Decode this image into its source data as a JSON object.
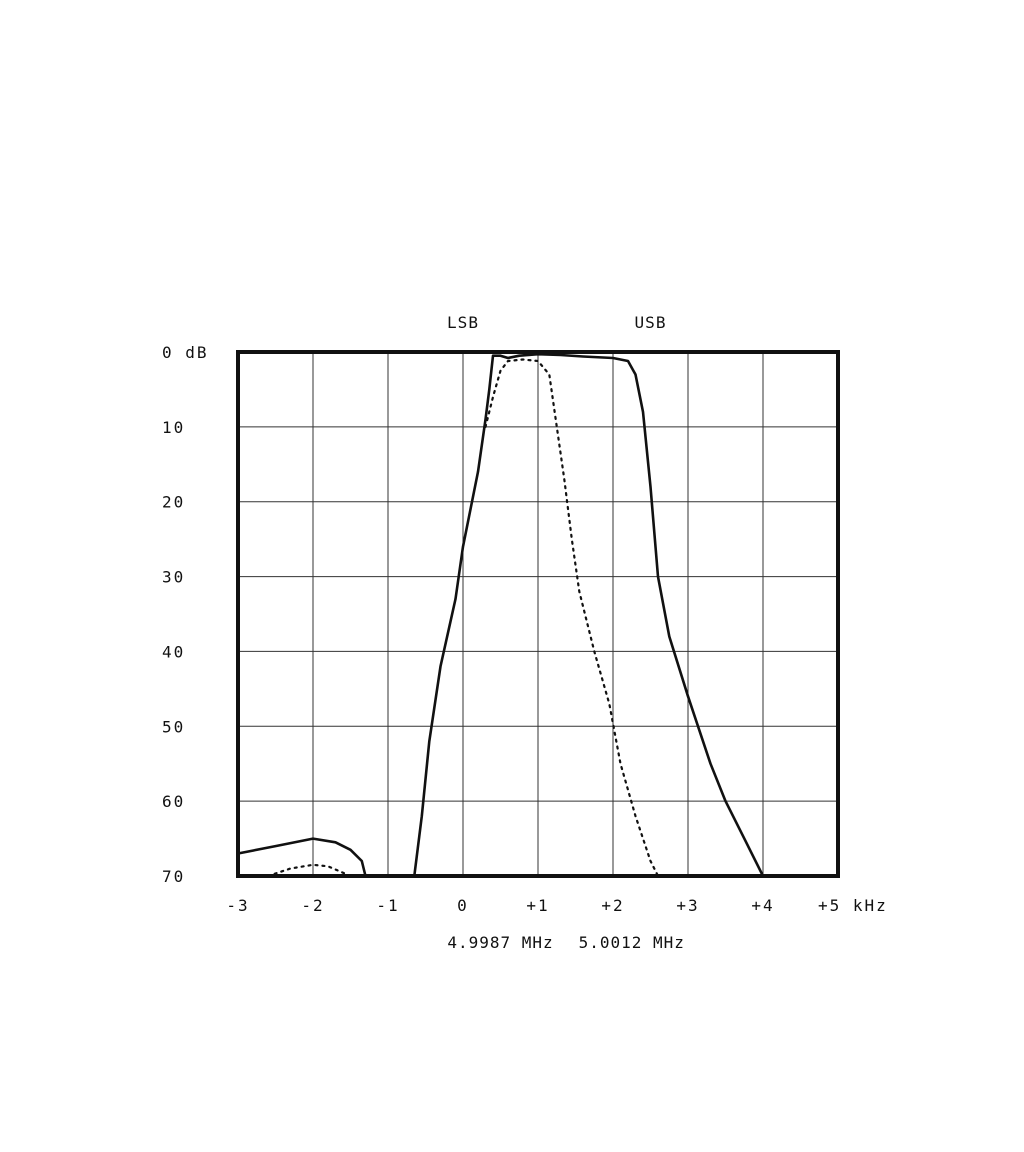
{
  "chart_data": {
    "type": "line",
    "title": "",
    "xlabel": "",
    "ylabel": "",
    "x_unit": "kHz",
    "y_unit": "dB",
    "xlim": [
      -3,
      5
    ],
    "ylim": [
      0,
      70
    ],
    "y_inverted": true,
    "grid": true,
    "x_ticks": [
      -3,
      -2,
      -1,
      0,
      1,
      2,
      3,
      4,
      5
    ],
    "x_tick_labels": [
      "-3",
      "-2",
      "-1",
      "0",
      "+1",
      "+2",
      "+3",
      "+4",
      "+5 kHz"
    ],
    "y_ticks": [
      0,
      10,
      20,
      30,
      40,
      50,
      60,
      70
    ],
    "y_tick_labels": [
      "0 dB",
      "10",
      "20",
      "30",
      "40",
      "50",
      "60",
      "70"
    ],
    "band_labels": [
      {
        "text": "LSB",
        "x": 0
      },
      {
        "text": "USB",
        "x": 2.5
      }
    ],
    "frequency_labels": [
      {
        "text": "4.9987 MHz",
        "x": 0.5
      },
      {
        "text": "5.0012 MHz",
        "x": 2.25
      }
    ],
    "series": [
      {
        "style": "solid",
        "color": "#111111",
        "segments": [
          [
            [
              -3,
              67
            ],
            [
              -2.5,
              66
            ],
            [
              -2,
              65
            ],
            [
              -1.7,
              65.5
            ],
            [
              -1.5,
              66.5
            ],
            [
              -1.35,
              68
            ],
            [
              -1.3,
              70
            ]
          ],
          [
            [
              -0.65,
              70
            ],
            [
              -0.55,
              62
            ],
            [
              -0.45,
              52
            ],
            [
              -0.3,
              42
            ],
            [
              -0.1,
              33
            ],
            [
              0,
              26
            ],
            [
              0.2,
              16
            ],
            [
              0.3,
              9
            ],
            [
              0.35,
              5
            ],
            [
              0.4,
              0.5
            ],
            [
              0.5,
              0.5
            ],
            [
              0.6,
              0.8
            ],
            [
              0.75,
              0.5
            ],
            [
              1,
              0.3
            ],
            [
              1.3,
              0.4
            ],
            [
              1.6,
              0.6
            ],
            [
              2,
              0.8
            ],
            [
              2.2,
              1.2
            ],
            [
              2.3,
              3
            ],
            [
              2.4,
              8
            ],
            [
              2.5,
              18
            ],
            [
              2.6,
              30
            ],
            [
              2.75,
              38
            ],
            [
              3,
              46
            ],
            [
              3.3,
              55
            ],
            [
              3.5,
              60
            ],
            [
              3.75,
              65
            ],
            [
              4,
              70
            ]
          ]
        ]
      },
      {
        "style": "dotted",
        "color": "#111111",
        "segments": [
          [
            [
              -2.6,
              70
            ],
            [
              -2.3,
              69
            ],
            [
              -2,
              68.5
            ],
            [
              -1.8,
              68.7
            ],
            [
              -1.5,
              70
            ]
          ],
          [
            [
              0.3,
              10
            ],
            [
              0.4,
              6
            ],
            [
              0.5,
              2.5
            ],
            [
              0.6,
              1.2
            ],
            [
              0.8,
              1
            ],
            [
              1,
              1.2
            ],
            [
              1.15,
              3
            ],
            [
              1.25,
              10
            ],
            [
              1.35,
              17
            ],
            [
              1.45,
              25
            ],
            [
              1.55,
              32
            ],
            [
              1.75,
              40
            ],
            [
              1.95,
              47
            ],
            [
              2.1,
              55
            ],
            [
              2.3,
              62
            ],
            [
              2.5,
              68
            ],
            [
              2.6,
              70
            ]
          ]
        ]
      }
    ]
  }
}
